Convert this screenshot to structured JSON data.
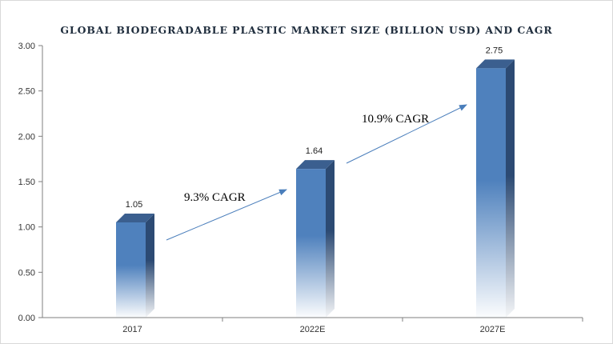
{
  "chart_data": {
    "type": "bar",
    "title": "GLOBAL BIODEGRADABLE  PLASTIC MARKET  SIZE (BILLION USD) AND CAGR",
    "categories": [
      "2017",
      "2022E",
      "2027E"
    ],
    "values": [
      1.05,
      1.64,
      2.75
    ],
    "value_labels": [
      "1.05",
      "1.64",
      "2.75"
    ],
    "ylim": [
      0,
      3.0
    ],
    "yticks": [
      "0.00",
      "0.50",
      "1.00",
      "1.50",
      "2.00",
      "2.50",
      "3.00"
    ],
    "xlabel": "",
    "ylabel": "",
    "grid": false,
    "annotations": [
      {
        "text": "9.3% CAGR",
        "from": "2017",
        "to": "2022E"
      },
      {
        "text": "10.9% CAGR",
        "from": "2022E",
        "to": "2027E"
      }
    ],
    "colors": {
      "bar_front": "#4f81bd",
      "bar_side": "#2c4a73",
      "bar_top": "#3b5f8f",
      "arrow": "#4a7ebb",
      "axis": "#7f7f7f"
    }
  }
}
